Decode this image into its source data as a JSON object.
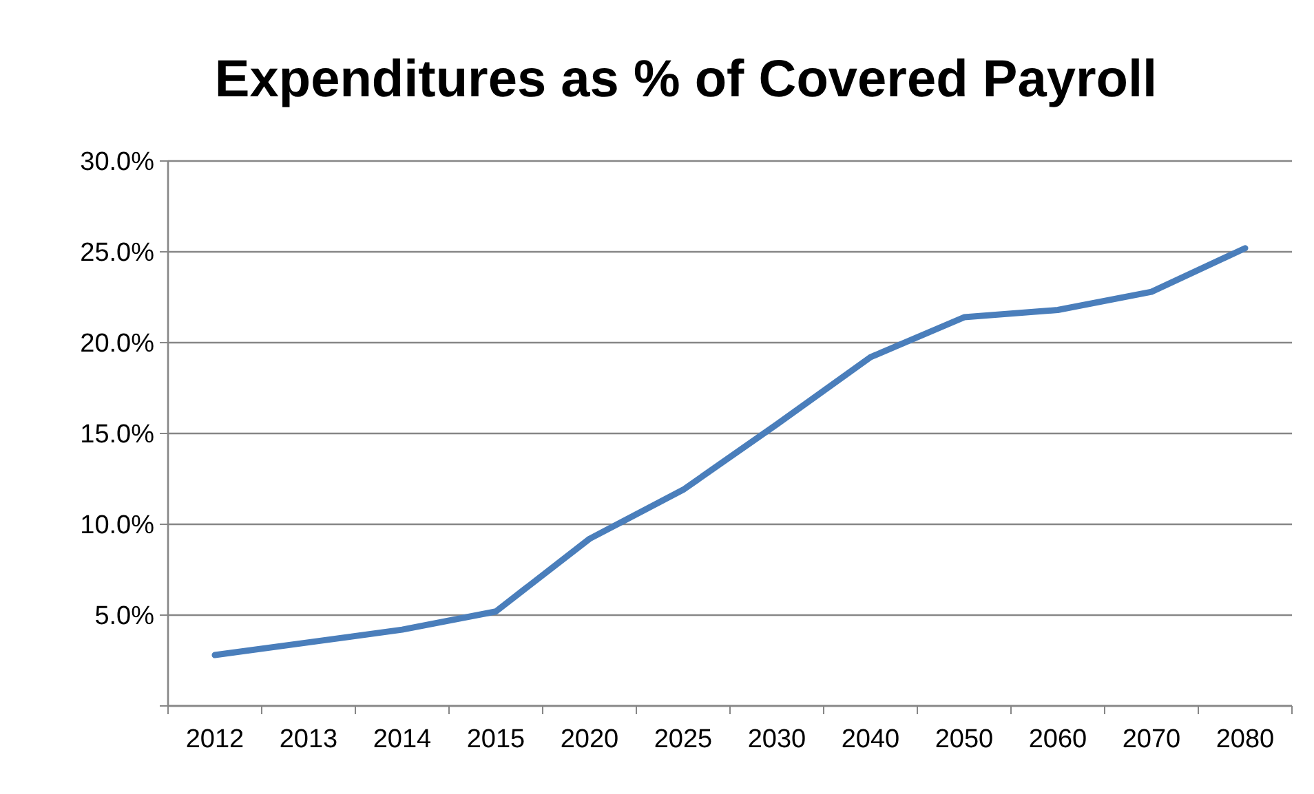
{
  "chart_data": {
    "type": "line",
    "title": "Expenditures as % of Covered Payroll",
    "categories": [
      "2012",
      "2013",
      "2014",
      "2015",
      "2020",
      "2025",
      "2030",
      "2040",
      "2050",
      "2060",
      "2070",
      "2080"
    ],
    "series": [
      {
        "color": "#4a7ebb",
        "values": [
          2.8,
          3.5,
          4.2,
          5.2,
          9.2,
          11.9,
          15.5,
          19.2,
          21.4,
          21.8,
          22.8,
          25.2
        ]
      }
    ],
    "ylim": [
      0,
      30
    ],
    "yticks": [
      {
        "value": 0,
        "label": null
      },
      {
        "value": 5,
        "label": "5.0%"
      },
      {
        "value": 10,
        "label": "10.0%"
      },
      {
        "value": 15,
        "label": "15.0%"
      },
      {
        "value": 20,
        "label": "20.0%"
      },
      {
        "value": 25,
        "label": "25.0%"
      },
      {
        "value": 30,
        "label": "30.0%"
      }
    ],
    "grid": "y",
    "marker": "none",
    "line_style": "solid"
  }
}
